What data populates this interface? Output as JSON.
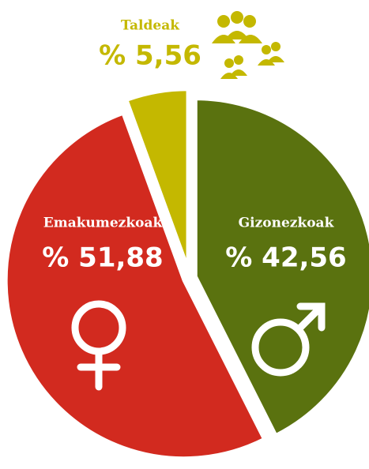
{
  "chart_data": {
    "type": "pie",
    "categories": [
      "Gizonezkoak",
      "Emakumezkoak",
      "Taldeak"
    ],
    "values": [
      42.56,
      51.88,
      5.56
    ],
    "value_labels": [
      "% 42,56",
      "% 51,88",
      "% 5,56"
    ],
    "colors": [
      "#5a720f",
      "#d22a1f",
      "#c4b800"
    ]
  }
}
